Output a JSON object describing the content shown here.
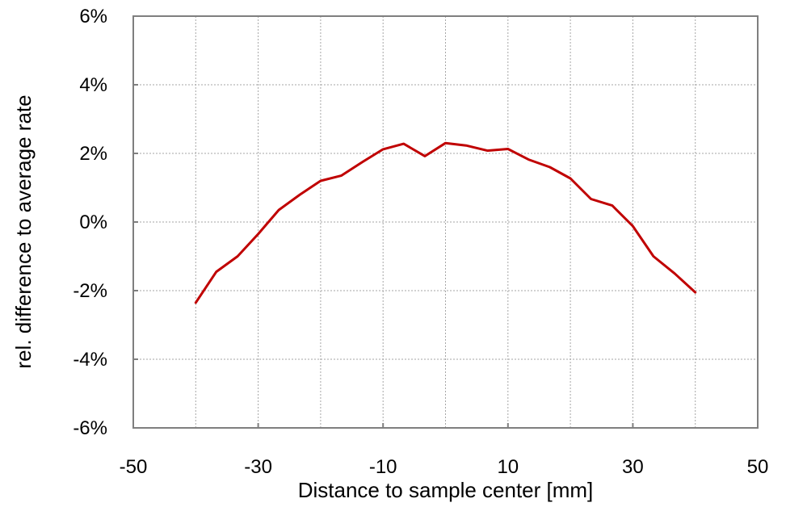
{
  "chart_data": {
    "type": "line",
    "title": "",
    "xlabel": "Distance to sample center [mm]",
    "ylabel": "rel. difference to average rate",
    "xlim": [
      -50,
      50
    ],
    "ylim": [
      -6,
      6
    ],
    "x_ticks": [
      -50,
      -30,
      -10,
      10,
      30,
      50
    ],
    "x_tick_labels": [
      "-50",
      "-30",
      "-10",
      "10",
      "30",
      "50"
    ],
    "x_minor_grid_step": 10,
    "y_ticks": [
      -6,
      -4,
      -2,
      0,
      2,
      4,
      6
    ],
    "y_tick_labels": [
      "-6%",
      "-4%",
      "-2%",
      "0%",
      "2%",
      "4%",
      "6%"
    ],
    "grid": true,
    "legend": "none",
    "series": [
      {
        "color": "#c00000",
        "x": [
          -40,
          -36.7,
          -33.3,
          -30,
          -26.7,
          -23.3,
          -20,
          -16.7,
          -13.3,
          -10,
          -6.7,
          -3.3,
          0,
          3.3,
          6.7,
          10,
          13.3,
          16.7,
          20,
          23.3,
          26.7,
          30,
          33.3,
          36.7,
          40
        ],
        "y": [
          -2.35,
          -1.45,
          -1.0,
          -0.35,
          0.35,
          0.8,
          1.2,
          1.35,
          1.75,
          2.12,
          2.28,
          1.92,
          2.3,
          2.23,
          2.08,
          2.13,
          1.82,
          1.6,
          1.27,
          0.67,
          0.48,
          -0.12,
          -1.0,
          -1.5,
          -2.05
        ]
      }
    ]
  }
}
